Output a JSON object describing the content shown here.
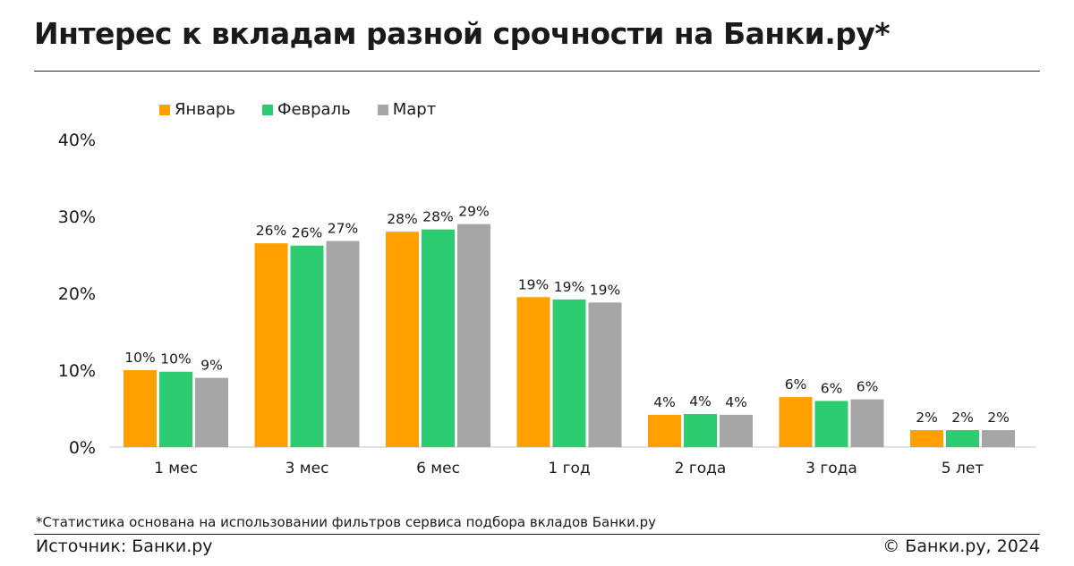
{
  "title": "Интерес к вкладам разной срочности на Банки.ру*",
  "footnote": "*Статистика основана на использовании фильтров сервиса подбора вкладов Банки.ру",
  "source": "Источник: Банки.ру",
  "copyright": "© Банки.ру, 2024",
  "colors": {
    "january": "#FF9F00",
    "february": "#2ECC71",
    "march": "#A6A6A6"
  },
  "chart_data": {
    "type": "bar",
    "categories": [
      "1 мес",
      "3 мес",
      "6 мес",
      "1 год",
      "2 года",
      "3 года",
      "5 лет"
    ],
    "series": [
      {
        "name": "Январь",
        "values": [
          10,
          26.5,
          28,
          19.5,
          4.2,
          6.5,
          2.2
        ],
        "labels": [
          "10%",
          "26%",
          "28%",
          "19%",
          "4%",
          "6%",
          "2%"
        ]
      },
      {
        "name": "Февраль",
        "values": [
          9.8,
          26.2,
          28.3,
          19.2,
          4.3,
          6.0,
          2.2
        ],
        "labels": [
          "10%",
          "26%",
          "28%",
          "19%",
          "4%",
          "6%",
          "2%"
        ]
      },
      {
        "name": "Март",
        "values": [
          9.0,
          26.8,
          29,
          18.8,
          4.2,
          6.2,
          2.2
        ],
        "labels": [
          "9%",
          "27%",
          "29%",
          "19%",
          "4%",
          "6%",
          "2%"
        ]
      }
    ],
    "yticks": [
      "0%",
      "10%",
      "20%",
      "30%",
      "40%"
    ],
    "ylim": [
      0,
      40
    ],
    "legend_position": "top-left",
    "grid": false
  }
}
